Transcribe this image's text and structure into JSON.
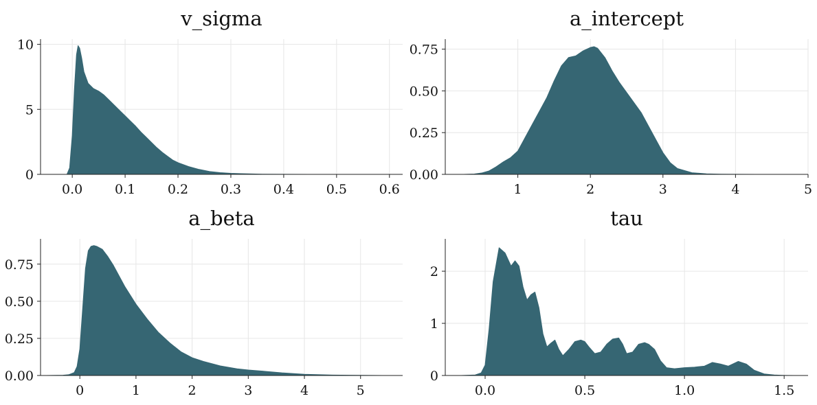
{
  "colors": {
    "fill": "#366673",
    "grid": "#e6e6e6",
    "axis": "#222222",
    "background": "#ffffff"
  },
  "chart_data": [
    {
      "type": "area",
      "title": "v_sigma",
      "xlabel": "",
      "ylabel": "",
      "xlim": [
        -0.06,
        0.625
      ],
      "ylim": [
        0,
        10.4
      ],
      "xticks": [
        0.0,
        0.1,
        0.2,
        0.3,
        0.4,
        0.5,
        0.6
      ],
      "xtick_labels": [
        "0.0",
        "0.1",
        "0.2",
        "0.3",
        "0.4",
        "0.5",
        "0.6"
      ],
      "yticks": [
        0,
        5,
        10
      ],
      "ytick_labels": [
        "0",
        "5",
        "10"
      ],
      "grid": true,
      "x": [
        -0.01,
        -0.005,
        0.0,
        0.004,
        0.008,
        0.011,
        0.014,
        0.018,
        0.022,
        0.03,
        0.04,
        0.05,
        0.06,
        0.07,
        0.08,
        0.09,
        0.1,
        0.11,
        0.12,
        0.13,
        0.14,
        0.15,
        0.16,
        0.17,
        0.18,
        0.19,
        0.2,
        0.22,
        0.24,
        0.26,
        0.28,
        0.3,
        0.32,
        0.34,
        0.36,
        0.4,
        0.45,
        0.5,
        0.55,
        0.6
      ],
      "y": [
        0,
        0.5,
        3.0,
        6.5,
        9.2,
        9.9,
        9.7,
        8.9,
        7.9,
        7.0,
        6.6,
        6.4,
        6.1,
        5.7,
        5.3,
        4.9,
        4.5,
        4.1,
        3.7,
        3.25,
        2.85,
        2.45,
        2.05,
        1.7,
        1.4,
        1.1,
        0.9,
        0.6,
        0.38,
        0.22,
        0.13,
        0.08,
        0.05,
        0.03,
        0.015,
        0.005,
        0.002,
        0.001,
        0.0,
        0.0
      ]
    },
    {
      "type": "area",
      "title": "a_intercept",
      "xlabel": "",
      "ylabel": "",
      "xlim": [
        0.0,
        5.0
      ],
      "ylim": [
        0,
        0.81
      ],
      "xticks": [
        1,
        2,
        3,
        4,
        5
      ],
      "xtick_labels": [
        "1",
        "2",
        "3",
        "4",
        "5"
      ],
      "yticks": [
        0.0,
        0.25,
        0.5,
        0.75
      ],
      "ytick_labels": [
        "0.00",
        "0.25",
        "0.50",
        "0.75"
      ],
      "grid": true,
      "x": [
        0.25,
        0.4,
        0.5,
        0.6,
        0.7,
        0.8,
        0.9,
        1.0,
        1.1,
        1.2,
        1.3,
        1.4,
        1.5,
        1.6,
        1.7,
        1.8,
        1.9,
        2.0,
        2.05,
        2.1,
        2.2,
        2.3,
        2.4,
        2.5,
        2.6,
        2.7,
        2.8,
        2.9,
        3.0,
        3.1,
        3.2,
        3.4,
        3.6,
        3.8,
        4.0,
        4.3,
        4.6,
        4.8
      ],
      "y": [
        0.0,
        0.002,
        0.008,
        0.02,
        0.045,
        0.075,
        0.1,
        0.14,
        0.22,
        0.3,
        0.38,
        0.46,
        0.56,
        0.65,
        0.7,
        0.71,
        0.74,
        0.76,
        0.765,
        0.755,
        0.7,
        0.62,
        0.55,
        0.49,
        0.43,
        0.37,
        0.29,
        0.21,
        0.13,
        0.07,
        0.035,
        0.01,
        0.003,
        0.001,
        0.0005,
        0.0002,
        0.0001,
        0.0
      ]
    },
    {
      "type": "area",
      "title": "a_beta",
      "xlabel": "",
      "ylabel": "",
      "xlim": [
        -0.7,
        5.75
      ],
      "ylim": [
        0,
        0.92
      ],
      "xticks": [
        0,
        1,
        2,
        3,
        4,
        5
      ],
      "xtick_labels": [
        "0",
        "1",
        "2",
        "3",
        "4",
        "5"
      ],
      "yticks": [
        0.0,
        0.25,
        0.5,
        0.75
      ],
      "ytick_labels": [
        "0.00",
        "0.25",
        "0.50",
        "0.75"
      ],
      "grid": true,
      "x": [
        -0.6,
        -0.3,
        -0.2,
        -0.1,
        -0.05,
        0.0,
        0.05,
        0.1,
        0.15,
        0.2,
        0.25,
        0.3,
        0.4,
        0.5,
        0.6,
        0.7,
        0.8,
        1.0,
        1.2,
        1.4,
        1.6,
        1.8,
        2.0,
        2.2,
        2.5,
        2.8,
        3.0,
        3.3,
        3.6,
        4.0,
        4.5,
        5.0,
        5.4
      ],
      "y": [
        0.0,
        0.002,
        0.005,
        0.02,
        0.06,
        0.18,
        0.45,
        0.72,
        0.84,
        0.87,
        0.875,
        0.87,
        0.85,
        0.8,
        0.74,
        0.67,
        0.6,
        0.48,
        0.38,
        0.29,
        0.22,
        0.16,
        0.12,
        0.095,
        0.065,
        0.045,
        0.037,
        0.028,
        0.018,
        0.008,
        0.003,
        0.001,
        0.0
      ]
    },
    {
      "type": "area",
      "title": "tau",
      "xlabel": "",
      "ylabel": "",
      "xlim": [
        -0.2,
        1.62
      ],
      "ylim": [
        0,
        2.62
      ],
      "xticks": [
        0.0,
        0.5,
        1.0,
        1.5
      ],
      "xtick_labels": [
        "0.0",
        "0.5",
        "1.0",
        "1.5"
      ],
      "yticks": [
        0,
        1,
        2
      ],
      "ytick_labels": [
        "0",
        "1",
        "2"
      ],
      "grid": true,
      "x": [
        -0.12,
        -0.05,
        -0.02,
        0.0,
        0.02,
        0.04,
        0.07,
        0.1,
        0.13,
        0.15,
        0.17,
        0.19,
        0.21,
        0.23,
        0.25,
        0.27,
        0.29,
        0.31,
        0.33,
        0.35,
        0.37,
        0.39,
        0.42,
        0.45,
        0.48,
        0.5,
        0.52,
        0.55,
        0.58,
        0.61,
        0.64,
        0.67,
        0.69,
        0.71,
        0.74,
        0.77,
        0.8,
        0.82,
        0.85,
        0.88,
        0.91,
        0.95,
        1.0,
        1.05,
        1.1,
        1.14,
        1.18,
        1.22,
        1.27,
        1.31,
        1.35,
        1.4,
        1.45,
        1.5,
        1.55
      ],
      "y": [
        0.0,
        0.01,
        0.05,
        0.2,
        0.9,
        1.8,
        2.45,
        2.35,
        2.1,
        2.2,
        2.1,
        1.7,
        1.45,
        1.55,
        1.6,
        1.3,
        0.8,
        0.55,
        0.62,
        0.68,
        0.5,
        0.38,
        0.5,
        0.65,
        0.68,
        0.65,
        0.55,
        0.42,
        0.45,
        0.6,
        0.7,
        0.72,
        0.6,
        0.42,
        0.45,
        0.6,
        0.63,
        0.6,
        0.5,
        0.28,
        0.15,
        0.13,
        0.15,
        0.16,
        0.18,
        0.25,
        0.22,
        0.18,
        0.27,
        0.22,
        0.1,
        0.03,
        0.01,
        0.002,
        0.0
      ]
    }
  ]
}
